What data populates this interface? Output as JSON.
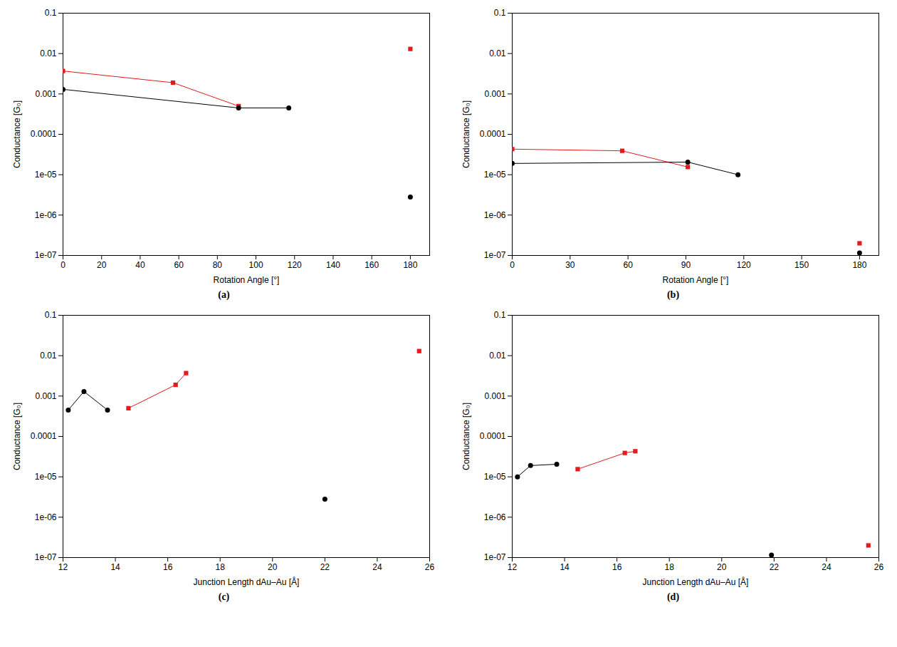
{
  "chart_data": [
    {
      "type": "line",
      "title": "(a)",
      "x_label": "Rotation Angle [°]",
      "y_label": "Conductance [G₀]",
      "log": "y",
      "grid": false,
      "xlim": [
        0,
        190
      ],
      "xticks": [
        0,
        20,
        40,
        60,
        80,
        100,
        120,
        140,
        160,
        180
      ],
      "ylim": [
        1e-07,
        0.1
      ],
      "yticks": [
        {
          "value": 1e-07,
          "label": "1e-07"
        },
        {
          "value": 1e-06,
          "label": "1e-06"
        },
        {
          "value": 1e-05,
          "label": "1e-05"
        },
        0.0001,
        0.001,
        0.01,
        0.1
      ],
      "series": [
        {
          "type": "line",
          "color": "#e41a1c",
          "marker": "square",
          "x": [
            0,
            57,
            91
          ],
          "values": [
            0.0037,
            0.0019,
            0.0005
          ]
        },
        {
          "type": "scatter",
          "color": "#e41a1c",
          "marker": "square",
          "x": [
            180
          ],
          "values": [
            0.013
          ]
        },
        {
          "type": "line",
          "color": "#000000",
          "marker": "circle",
          "x": [
            0,
            91,
            117
          ],
          "values": [
            0.0013,
            0.00045,
            0.00045
          ]
        },
        {
          "type": "scatter",
          "color": "#000000",
          "marker": "circle",
          "x": [
            180
          ],
          "values": [
            2.8e-06
          ]
        }
      ]
    },
    {
      "type": "line",
      "title": "(b)",
      "x_label": "Rotation Angle [°]",
      "y_label": "Conductance [G₀]",
      "log": "y",
      "grid": false,
      "xlim": [
        0,
        190
      ],
      "xticks": [
        0,
        30,
        60,
        90,
        120,
        150,
        180
      ],
      "ylim": [
        1e-07,
        0.1
      ],
      "yticks": [
        {
          "value": 1e-07,
          "label": "1e-07"
        },
        {
          "value": 1e-06,
          "label": "1e-06"
        },
        {
          "value": 1e-05,
          "label": "1e-05"
        },
        0.0001,
        0.001,
        0.01,
        0.1
      ],
      "series": [
        {
          "type": "line",
          "color": "#e41a1c",
          "marker": "square",
          "x": [
            0,
            57,
            91
          ],
          "values": [
            4.3e-05,
            3.9e-05,
            1.55e-05
          ]
        },
        {
          "type": "scatter",
          "color": "#e41a1c",
          "marker": "square",
          "x": [
            180
          ],
          "values": [
            2e-07
          ]
        },
        {
          "type": "line",
          "color": "#000000",
          "marker": "circle",
          "x": [
            0,
            91,
            117
          ],
          "values": [
            1.9e-05,
            2.05e-05,
            1e-05
          ]
        },
        {
          "type": "scatter",
          "color": "#000000",
          "marker": "circle",
          "x": [
            180
          ],
          "values": [
            1.15e-07
          ]
        }
      ]
    },
    {
      "type": "line",
      "title": "(c)",
      "x_label": "Junction Length dAu–Au [Å]",
      "y_label": "Conductance [G₀]",
      "log": "y",
      "grid": false,
      "xlim": [
        12,
        26
      ],
      "xticks": [
        12,
        14,
        16,
        18,
        20,
        22,
        24,
        26
      ],
      "ylim": [
        1e-07,
        0.1
      ],
      "yticks": [
        {
          "value": 1e-07,
          "label": "1e-07"
        },
        {
          "value": 1e-06,
          "label": "1e-06"
        },
        {
          "value": 1e-05,
          "label": "1e-05"
        },
        0.0001,
        0.001,
        0.01,
        0.1
      ],
      "series": [
        {
          "type": "line",
          "color": "#000000",
          "marker": "circle",
          "x": [
            12.2,
            12.8,
            13.7
          ],
          "values": [
            0.00045,
            0.0013,
            0.00045
          ]
        },
        {
          "type": "scatter",
          "color": "#000000",
          "marker": "circle",
          "x": [
            22.0
          ],
          "values": [
            2.8e-06
          ]
        },
        {
          "type": "line",
          "color": "#e41a1c",
          "marker": "square",
          "x": [
            14.5,
            16.3,
            16.7
          ],
          "values": [
            0.0005,
            0.0019,
            0.0037
          ]
        },
        {
          "type": "scatter",
          "color": "#e41a1c",
          "marker": "square",
          "x": [
            25.6
          ],
          "values": [
            0.013
          ]
        }
      ]
    },
    {
      "type": "line",
      "title": "(d)",
      "x_label": "Junction Length dAu–Au [Å]",
      "y_label": "Conductance [G₀]",
      "log": "y",
      "grid": false,
      "xlim": [
        12,
        26
      ],
      "xticks": [
        12,
        14,
        16,
        18,
        20,
        22,
        24,
        26
      ],
      "ylim": [
        1e-07,
        0.1
      ],
      "yticks": [
        {
          "value": 1e-07,
          "label": "1e-07"
        },
        {
          "value": 1e-06,
          "label": "1e-06"
        },
        {
          "value": 1e-05,
          "label": "1e-05"
        },
        0.0001,
        0.001,
        0.01,
        0.1
      ],
      "series": [
        {
          "type": "line",
          "color": "#000000",
          "marker": "circle",
          "x": [
            12.2,
            12.7,
            13.7
          ],
          "values": [
            1e-05,
            1.9e-05,
            2.05e-05
          ]
        },
        {
          "type": "scatter",
          "color": "#000000",
          "marker": "circle",
          "x": [
            21.9
          ],
          "values": [
            1.15e-07
          ]
        },
        {
          "type": "line",
          "color": "#e41a1c",
          "marker": "square",
          "x": [
            14.5,
            16.3,
            16.7
          ],
          "values": [
            1.55e-05,
            3.9e-05,
            4.3e-05
          ]
        },
        {
          "type": "scatter",
          "color": "#e41a1c",
          "marker": "square",
          "x": [
            25.6
          ],
          "values": [
            2e-07
          ]
        }
      ]
    }
  ]
}
